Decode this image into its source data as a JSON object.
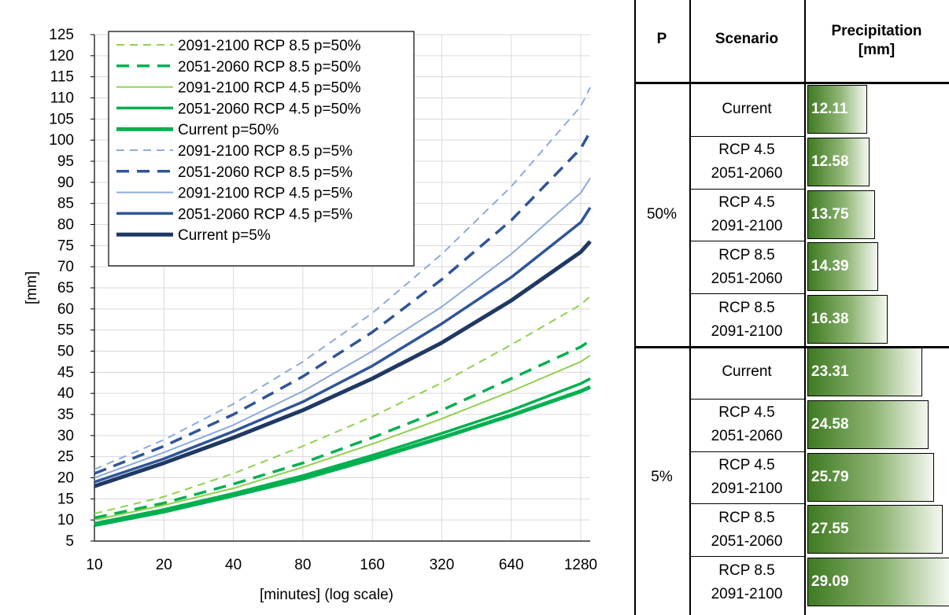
{
  "chart_data": [
    {
      "type": "line",
      "xlabel": "[minutes] (log scale)",
      "ylabel": "[mm]",
      "xscale": "log",
      "xticks": [
        10,
        20,
        40,
        80,
        160,
        320,
        640,
        1280
      ],
      "xlim": [
        10,
        1280
      ],
      "ylim": [
        5,
        125
      ],
      "yticks": [
        5,
        10,
        15,
        20,
        25,
        30,
        35,
        40,
        45,
        50,
        55,
        60,
        65,
        70,
        75,
        80,
        85,
        90,
        95,
        100,
        105,
        110,
        115,
        120,
        125
      ],
      "grid": true,
      "legend_position": "top-left",
      "x": [
        10,
        20,
        40,
        80,
        160,
        320,
        640,
        1280,
        1440
      ],
      "series": [
        {
          "name": "2091-2100 RCP 8.5 p=50%",
          "color": "#92d050",
          "dash": "dashed",
          "width": "thin",
          "values": [
            11.5,
            15.5,
            21.0,
            27.5,
            34.5,
            42.5,
            51.5,
            61.0,
            63.0
          ]
        },
        {
          "name": "2051-2060 RCP 8.5 p=50%",
          "color": "#00b050",
          "dash": "dashed",
          "width": "thick",
          "values": [
            10.5,
            14.0,
            18.5,
            23.5,
            29.5,
            36.0,
            43.5,
            51.0,
            52.5
          ]
        },
        {
          "name": "2091-2100 RCP 4.5 p=50%",
          "color": "#92d050",
          "dash": "solid",
          "width": "thin",
          "values": [
            10.0,
            13.5,
            17.5,
            22.5,
            28.0,
            34.0,
            40.5,
            47.5,
            49.0
          ]
        },
        {
          "name": "2051-2060 RCP 4.5 p=50%",
          "color": "#00b050",
          "dash": "solid",
          "width": "thick",
          "values": [
            9.2,
            12.5,
            16.3,
            20.5,
            25.3,
            30.5,
            36.0,
            42.3,
            43.5
          ]
        },
        {
          "name": "Current p=50%",
          "color": "#00b050",
          "dash": "solid",
          "width": "thicker",
          "values": [
            8.8,
            12.0,
            15.8,
            19.8,
            24.5,
            29.5,
            34.8,
            40.5,
            41.5
          ]
        },
        {
          "name": "2091-2100 RCP 8.5 p=5%",
          "color": "#8eaadb",
          "dash": "dashed",
          "width": "thin",
          "values": [
            22.0,
            29.0,
            37.5,
            47.5,
            59.0,
            73.0,
            89.0,
            108.0,
            112.5
          ]
        },
        {
          "name": "2051-2060 RCP 8.5 p=5%",
          "color": "#2f5597",
          "dash": "dashed",
          "width": "thick",
          "values": [
            21.0,
            27.5,
            35.0,
            44.0,
            54.5,
            67.0,
            81.0,
            98.0,
            102.0
          ]
        },
        {
          "name": "2091-2100 RCP 4.5 p=5%",
          "color": "#8eaadb",
          "dash": "solid",
          "width": "thin",
          "values": [
            20.0,
            26.0,
            32.5,
            40.5,
            50.0,
            60.5,
            73.0,
            87.5,
            91.0
          ]
        },
        {
          "name": "2051-2060 RCP 4.5 p=5%",
          "color": "#2f5597",
          "dash": "solid",
          "width": "thick",
          "values": [
            19.0,
            24.5,
            31.0,
            38.0,
            46.5,
            56.5,
            67.5,
            80.5,
            84.0
          ]
        },
        {
          "name": "Current p=5%",
          "color": "#1f3864",
          "dash": "solid",
          "width": "thicker",
          "values": [
            18.0,
            23.5,
            29.5,
            36.0,
            43.5,
            52.0,
            62.0,
            73.5,
            76.0
          ]
        }
      ]
    },
    {
      "type": "table",
      "columns": [
        "P",
        "Scenario",
        "Precipitation [mm]"
      ],
      "bar_max": 29.09,
      "groups": [
        {
          "p": "50%",
          "rows": [
            {
              "scenario_line1": "Current",
              "scenario_line2": "",
              "value": 12.11,
              "label": "12.11"
            },
            {
              "scenario_line1": "RCP 4.5",
              "scenario_line2": "2051-2060",
              "value": 12.58,
              "label": "12.58"
            },
            {
              "scenario_line1": "RCP 4.5",
              "scenario_line2": "2091-2100",
              "value": 13.75,
              "label": "13.75"
            },
            {
              "scenario_line1": "RCP 8.5",
              "scenario_line2": "2051-2060",
              "value": 14.39,
              "label": "14.39"
            },
            {
              "scenario_line1": "RCP 8.5",
              "scenario_line2": "2091-2100",
              "value": 16.38,
              "label": "16.38"
            }
          ]
        },
        {
          "p": "5%",
          "rows": [
            {
              "scenario_line1": "Current",
              "scenario_line2": "",
              "value": 23.31,
              "label": "23.31"
            },
            {
              "scenario_line1": "RCP 4.5",
              "scenario_line2": "2051-2060",
              "value": 24.58,
              "label": "24.58"
            },
            {
              "scenario_line1": "RCP 4.5",
              "scenario_line2": "2091-2100",
              "value": 25.79,
              "label": "25.79"
            },
            {
              "scenario_line1": "RCP 8.5",
              "scenario_line2": "2051-2060",
              "value": 27.55,
              "label": "27.55"
            },
            {
              "scenario_line1": "RCP 8.5",
              "scenario_line2": "2091-2100",
              "value": 29.09,
              "label": "29.09"
            }
          ]
        }
      ]
    }
  ]
}
